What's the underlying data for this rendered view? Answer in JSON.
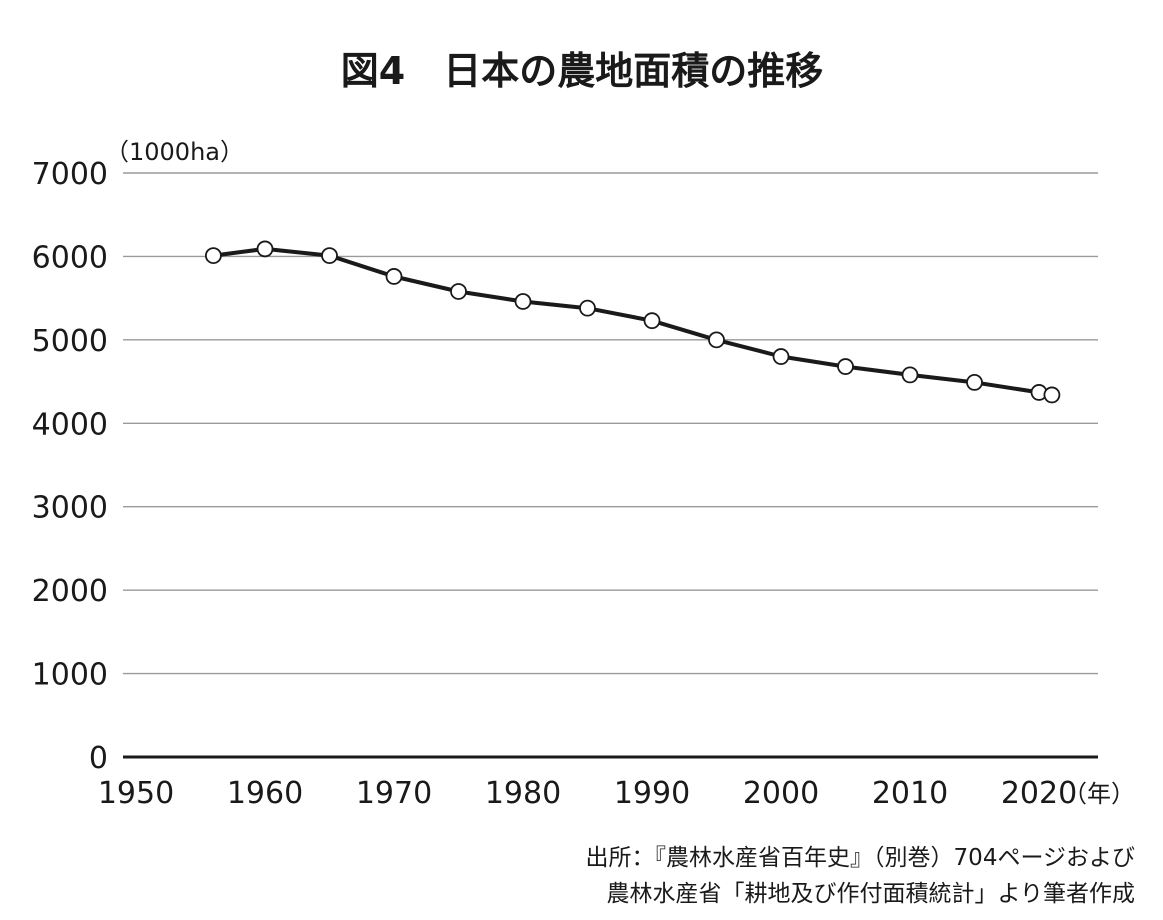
{
  "chart_data": {
    "type": "line",
    "title": "図4　日本の農地面積の推移",
    "ylabel": "（1000ha）",
    "xlabel": "（年）",
    "x_ticks": [
      1950,
      1960,
      1970,
      1980,
      1990,
      2000,
      2010,
      2020
    ],
    "y_ticks": [
      0,
      1000,
      2000,
      3000,
      4000,
      5000,
      6000,
      7000
    ],
    "xlim": [
      1950,
      2022
    ],
    "ylim": [
      0,
      7000
    ],
    "grid": true,
    "x": [
      1956,
      1960,
      1965,
      1970,
      1975,
      1980,
      1985,
      1990,
      1995,
      2000,
      2005,
      2010,
      2015,
      2020,
      2021
    ],
    "values": [
      6010,
      6090,
      6010,
      5760,
      5580,
      5460,
      5380,
      5230,
      5000,
      4800,
      4680,
      4580,
      4490,
      4370,
      4340
    ],
    "marker_fill": "#ffffff",
    "line_color": "#1a1a1a",
    "grid_color": "#9a9a9a"
  },
  "source": {
    "line1": "出所：『農林水産省百年史』（別巻）704ページおよび",
    "line2": "農林水産省「耕地及び作付面積統計」より筆者作成"
  }
}
